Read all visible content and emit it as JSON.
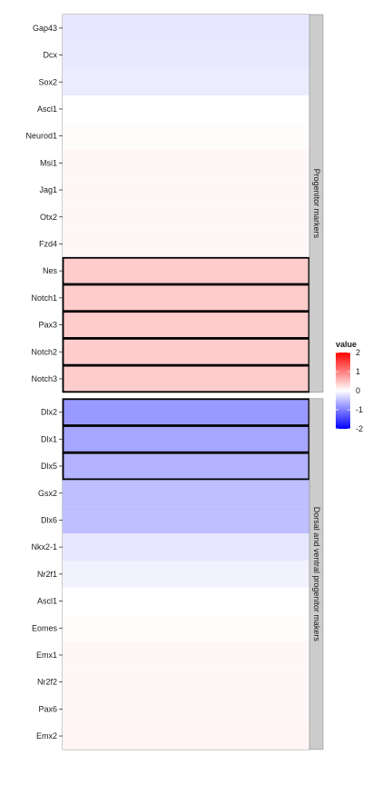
{
  "chart_data": {
    "type": "heatmap",
    "fill_scale": {
      "low_color": "#0000ff",
      "mid_color": "#ffffff",
      "high_color": "#ff0000",
      "limits": [
        -2,
        2
      ]
    },
    "legend": {
      "title": "value",
      "ticks": [
        "2",
        "1",
        "0",
        "-1",
        "-2"
      ],
      "tick_values": [
        2,
        1,
        0,
        -1,
        -2
      ],
      "position": "right"
    },
    "outline_color": "#000000",
    "facets": [
      {
        "strip_label": "Progenitor markers",
        "rows": [
          {
            "label": "Gap43",
            "value": -0.2,
            "outlined": false
          },
          {
            "label": "Dcx",
            "value": -0.18,
            "outlined": false
          },
          {
            "label": "Sox2",
            "value": -0.15,
            "outlined": false
          },
          {
            "label": "Ascl1",
            "value": 0.0,
            "outlined": false
          },
          {
            "label": "Neurod1",
            "value": 0.02,
            "outlined": false
          },
          {
            "label": "Msi1",
            "value": 0.06,
            "outlined": false
          },
          {
            "label": "Jag1",
            "value": 0.06,
            "outlined": false
          },
          {
            "label": "Otx2",
            "value": 0.06,
            "outlined": false
          },
          {
            "label": "Fzd4",
            "value": 0.06,
            "outlined": false
          },
          {
            "label": "Nes",
            "value": 0.4,
            "outlined": true
          },
          {
            "label": "Notch1",
            "value": 0.4,
            "outlined": true
          },
          {
            "label": "Pax3",
            "value": 0.4,
            "outlined": true
          },
          {
            "label": "Notch2",
            "value": 0.4,
            "outlined": true
          },
          {
            "label": "Notch3",
            "value": 0.4,
            "outlined": true
          }
        ]
      },
      {
        "strip_label": "Dorsal and ventral progenitor makers",
        "rows": [
          {
            "label": "Dlx2",
            "value": -0.8,
            "outlined": true
          },
          {
            "label": "Dlx1",
            "value": -0.7,
            "outlined": true
          },
          {
            "label": "Dlx5",
            "value": -0.6,
            "outlined": true
          },
          {
            "label": "Gsx2",
            "value": -0.5,
            "outlined": false
          },
          {
            "label": "Dlx6",
            "value": -0.5,
            "outlined": false
          },
          {
            "label": "Nkx2-1",
            "value": -0.2,
            "outlined": false
          },
          {
            "label": "Nr2f1",
            "value": -0.1,
            "outlined": false
          },
          {
            "label": "Ascl1",
            "value": 0.0,
            "outlined": false
          },
          {
            "label": "Eomes",
            "value": 0.02,
            "outlined": false
          },
          {
            "label": "Emx1",
            "value": 0.06,
            "outlined": false
          },
          {
            "label": "Nr2f2",
            "value": 0.06,
            "outlined": false
          },
          {
            "label": "Pax6",
            "value": 0.06,
            "outlined": false
          },
          {
            "label": "Emx2",
            "value": 0.08,
            "outlined": false
          }
        ]
      }
    ]
  }
}
